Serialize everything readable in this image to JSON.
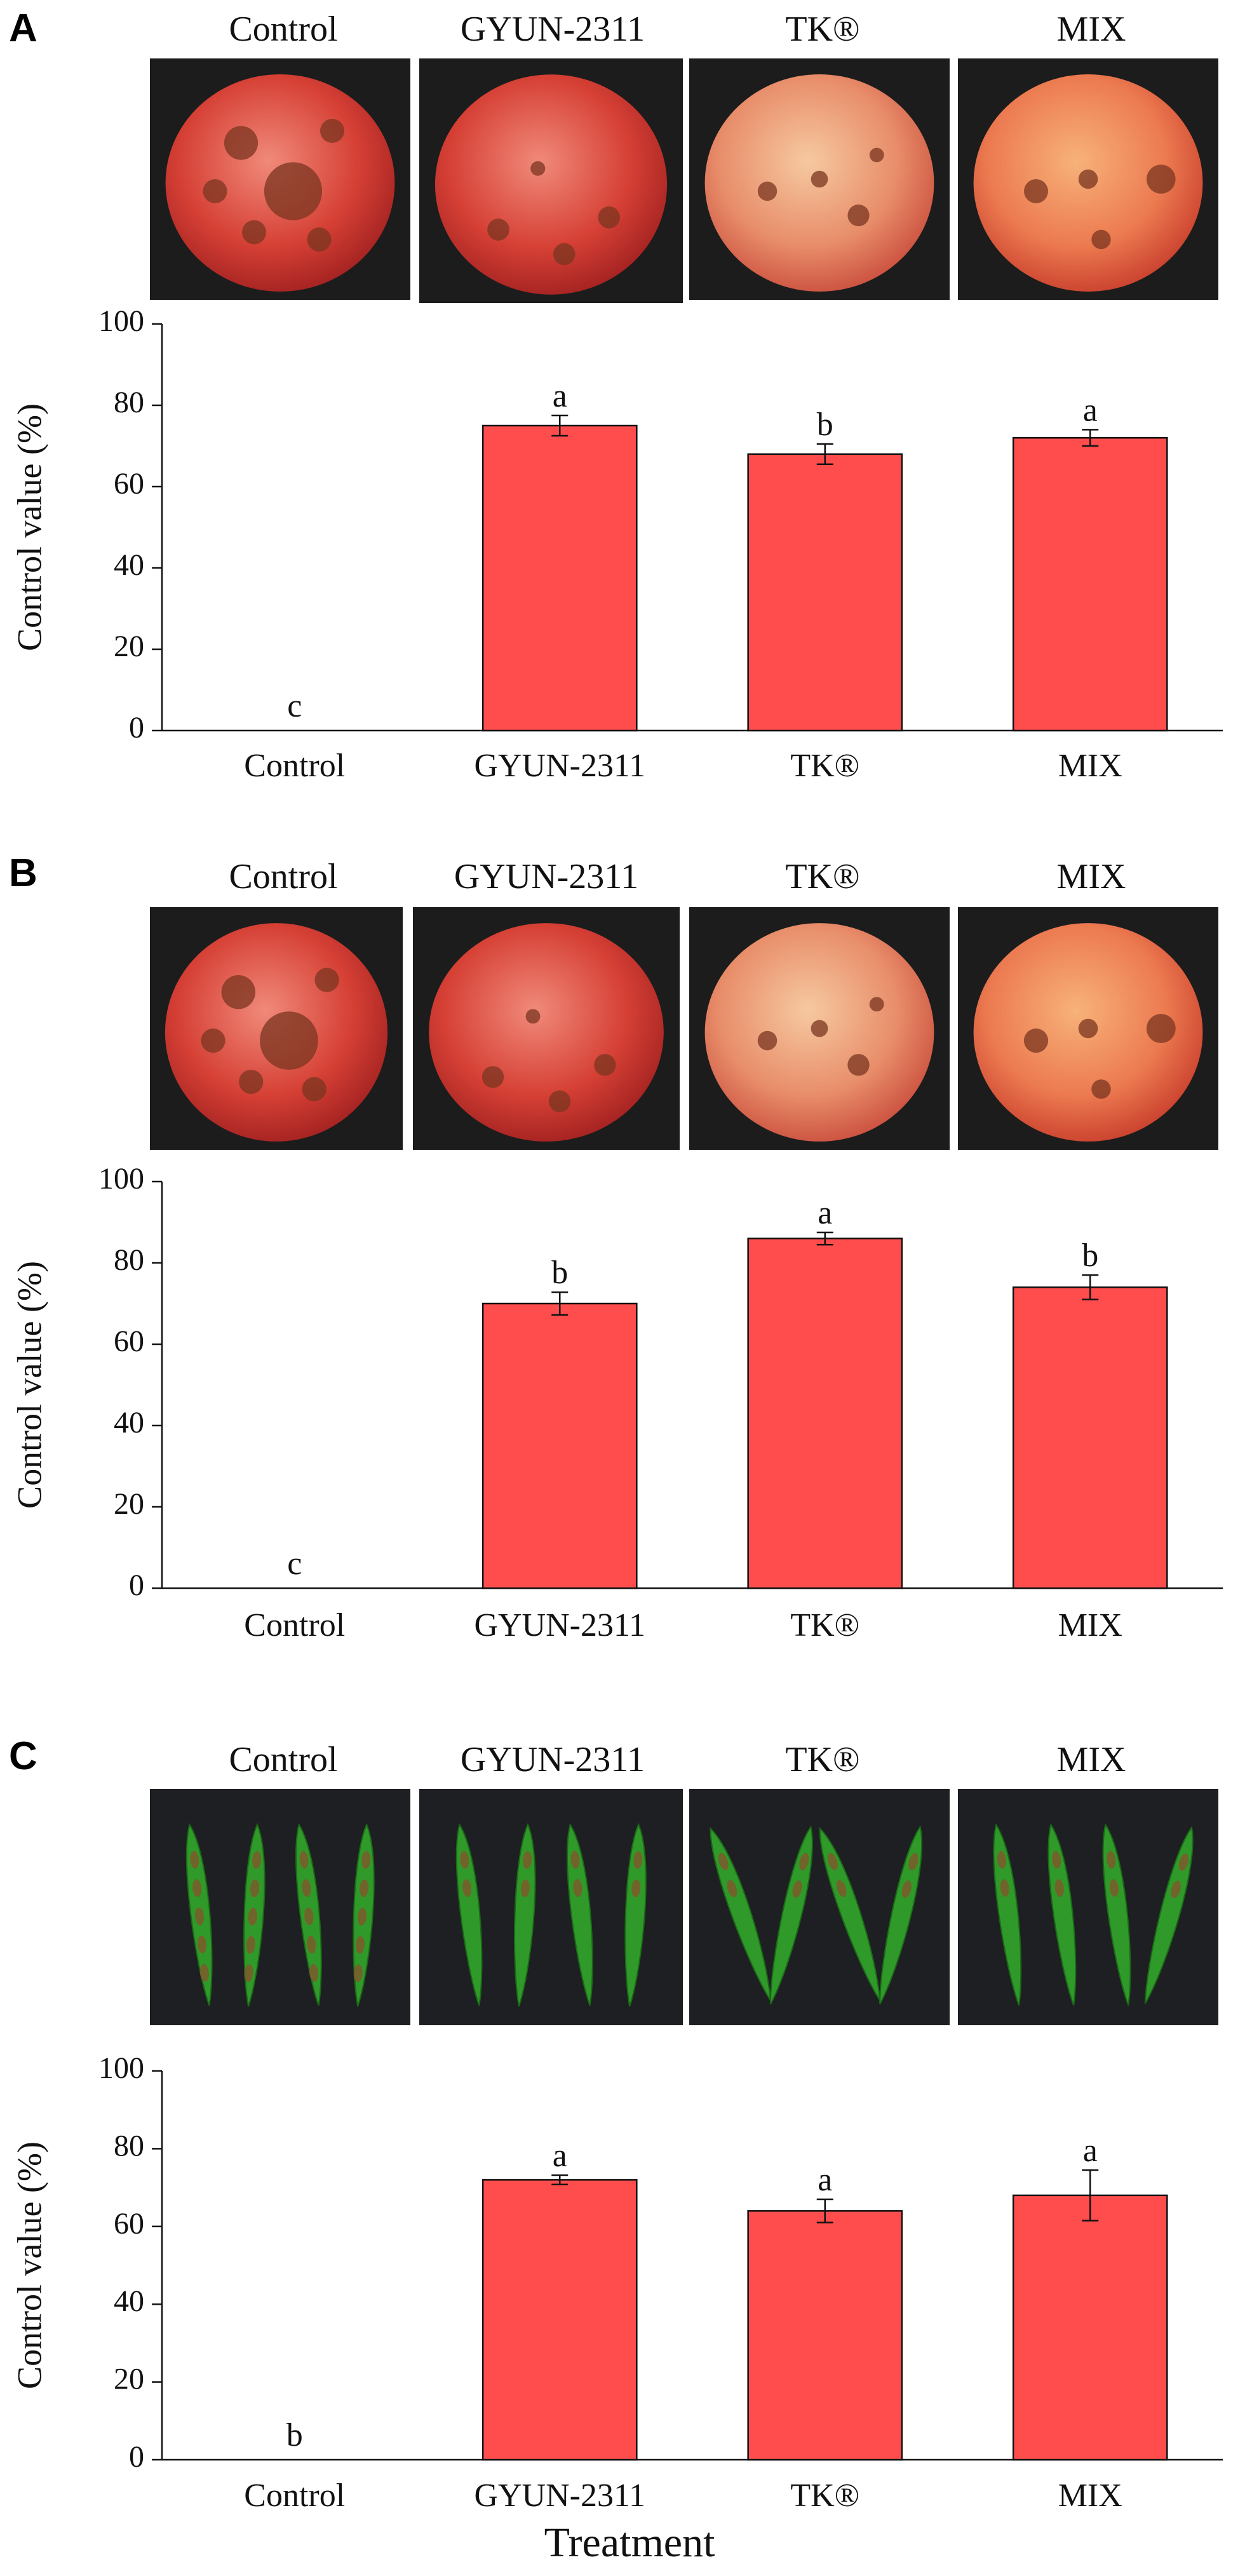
{
  "figure": {
    "x_axis_title": "Treatment",
    "y_axis_title": "Control value (%)"
  },
  "panels": [
    {
      "letter": "A",
      "subject": "apple",
      "photo_labels": [
        "Control",
        "GYUN-2311",
        "TK®",
        "MIX"
      ]
    },
    {
      "letter": "B",
      "subject": "apple",
      "photo_labels": [
        "Control",
        "GYUN-2311",
        "TK®",
        "MIX"
      ]
    },
    {
      "letter": "C",
      "subject": "pepper",
      "photo_labels": [
        "Control",
        "GYUN-2311",
        "TK®",
        "MIX"
      ]
    }
  ],
  "chart_data": [
    {
      "panel": "A",
      "type": "bar",
      "categories": [
        "Control",
        "GYUN-2311",
        "TK®",
        "MIX"
      ],
      "values": [
        0,
        75,
        68,
        72
      ],
      "errors": [
        0,
        2.5,
        2.5,
        2.0
      ],
      "significance_letters": [
        "c",
        "a",
        "b",
        "a"
      ],
      "title": "",
      "xlabel": "",
      "ylabel": "Control value (%)",
      "ylim": [
        0,
        100
      ],
      "yticks": [
        0,
        20,
        40,
        60,
        80,
        100
      ],
      "bar_color": "#ff4d4d"
    },
    {
      "panel": "B",
      "type": "bar",
      "categories": [
        "Control",
        "GYUN-2311",
        "TK®",
        "MIX"
      ],
      "values": [
        0,
        70,
        86,
        74
      ],
      "errors": [
        0,
        2.8,
        1.5,
        3.0
      ],
      "significance_letters": [
        "c",
        "b",
        "a",
        "b"
      ],
      "title": "",
      "xlabel": "",
      "ylabel": "Control value (%)",
      "ylim": [
        0,
        100
      ],
      "yticks": [
        0,
        20,
        40,
        60,
        80,
        100
      ],
      "bar_color": "#ff4d4d"
    },
    {
      "panel": "C",
      "type": "bar",
      "categories": [
        "Control",
        "GYUN-2311",
        "TK®",
        "MIX"
      ],
      "values": [
        0,
        72,
        64,
        68
      ],
      "errors": [
        0,
        1.2,
        3.0,
        6.5
      ],
      "significance_letters": [
        "b",
        "a",
        "a",
        "a"
      ],
      "title": "",
      "xlabel": "Treatment",
      "ylabel": "Control value (%)",
      "ylim": [
        0,
        100
      ],
      "yticks": [
        0,
        20,
        40,
        60,
        80,
        100
      ],
      "bar_color": "#ff4d4d"
    }
  ]
}
